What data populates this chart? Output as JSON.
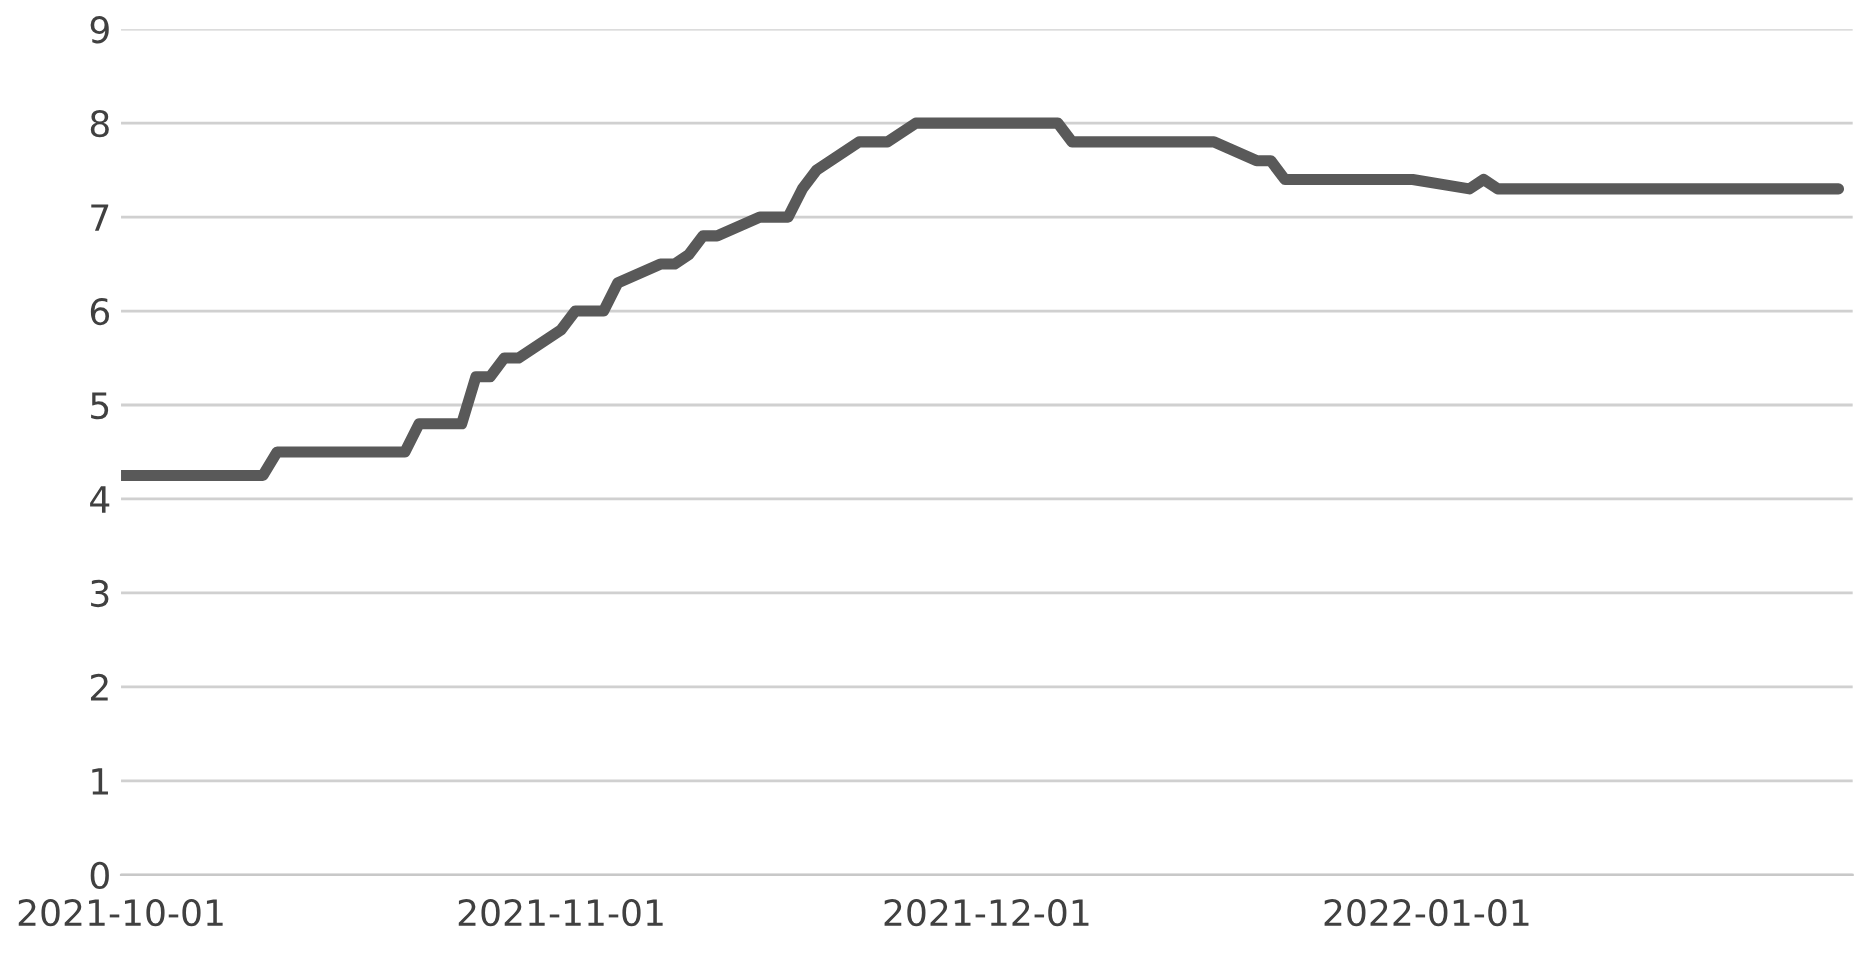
{
  "chart_data": {
    "type": "line",
    "x": [
      "2021-10-01",
      "2021-10-11",
      "2021-10-12",
      "2021-10-21",
      "2021-10-22",
      "2021-10-25",
      "2021-10-26",
      "2021-10-27",
      "2021-10-28",
      "2021-10-29",
      "2021-11-01",
      "2021-11-02",
      "2021-11-04",
      "2021-11-05",
      "2021-11-08",
      "2021-11-09",
      "2021-11-10",
      "2021-11-11",
      "2021-11-12",
      "2021-11-15",
      "2021-11-17",
      "2021-11-18",
      "2021-11-19",
      "2021-11-22",
      "2021-11-24",
      "2021-11-26",
      "2021-12-06",
      "2021-12-07",
      "2021-12-17",
      "2021-12-20",
      "2021-12-21",
      "2021-12-22",
      "2021-12-31",
      "2022-01-04",
      "2022-01-05",
      "2022-01-06",
      "2022-01-30"
    ],
    "series": [
      {
        "color": "#595959",
        "values": [
          4.25,
          4.25,
          4.5,
          4.5,
          4.8,
          4.8,
          5.3,
          5.3,
          5.5,
          5.5,
          5.8,
          6.0,
          6.0,
          6.3,
          6.5,
          6.5,
          6.6,
          6.8,
          6.8,
          7.0,
          7.0,
          7.3,
          7.5,
          7.8,
          7.8,
          8.0,
          8.0,
          7.8,
          7.8,
          7.6,
          7.6,
          7.4,
          7.4,
          7.3,
          7.4,
          7.3,
          7.3
        ]
      }
    ],
    "xlim": [
      "2021-10-01",
      "2022-01-31"
    ],
    "xticks": [
      "2021-10-01",
      "2021-11-01",
      "2021-12-01",
      "2022-01-01"
    ],
    "ylim": [
      0,
      9
    ],
    "yticks": [
      0,
      1,
      2,
      3,
      4,
      5,
      6,
      7,
      8,
      9
    ],
    "grid": "y",
    "marker": "none",
    "line_style": "solid"
  }
}
